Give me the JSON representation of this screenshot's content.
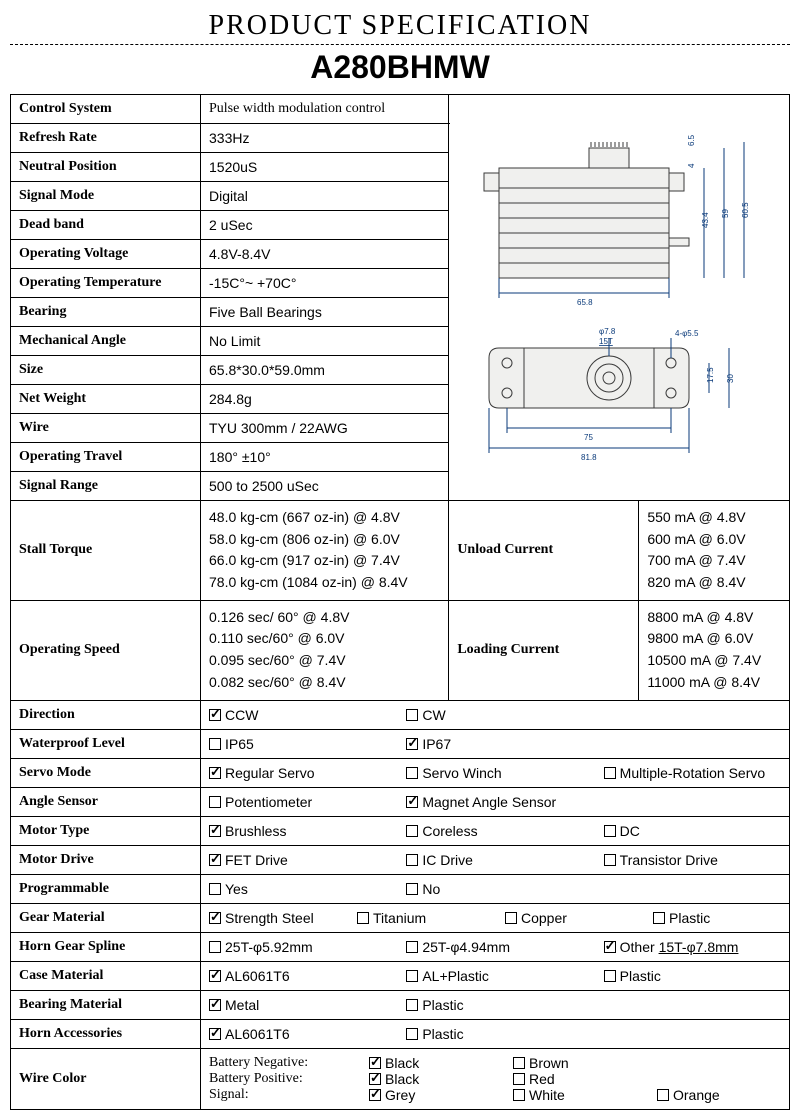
{
  "header": {
    "title": "PRODUCT SPECIFICATION",
    "model": "A280BHMW"
  },
  "rows": {
    "control_system": {
      "label": "Control System",
      "value": "Pulse width modulation control"
    },
    "refresh_rate": {
      "label": "Refresh Rate",
      "value": "333Hz"
    },
    "neutral_pos": {
      "label": "Neutral Position",
      "value": "1520uS"
    },
    "signal_mode": {
      "label": "Signal Mode",
      "value": "Digital"
    },
    "dead_band": {
      "label": "Dead band",
      "value": "2 uSec"
    },
    "op_voltage": {
      "label": "Operating Voltage",
      "value": "4.8V-8.4V"
    },
    "op_temp": {
      "label": "Operating Temperature",
      "value": "-15C°~ +70C°"
    },
    "bearing": {
      "label": "Bearing",
      "value": "Five Ball Bearings"
    },
    "mech_angle": {
      "label": "Mechanical Angle",
      "value": "No Limit"
    },
    "size": {
      "label": "Size",
      "value": "65.8*30.0*59.0mm"
    },
    "net_weight": {
      "label": "Net Weight",
      "value": "284.8g"
    },
    "wire": {
      "label": "Wire",
      "value": "TYU 300mm / 22AWG"
    },
    "op_travel": {
      "label": "Operating Travel",
      "value": "180° ±10°"
    },
    "signal_range": {
      "label": "Signal Range",
      "value": "500 to 2500 uSec"
    }
  },
  "stall_torque": {
    "label": "Stall Torque",
    "lines": [
      "48.0 kg-cm (667 oz-in)   @ 4.8V",
      "58.0 kg-cm (806 oz-in)   @ 6.0V",
      "66.0 kg-cm (917 oz-in)   @ 7.4V",
      "78.0 kg-cm (1084 oz-in)   @ 8.4V"
    ]
  },
  "unload_current": {
    "label": "Unload Current",
    "lines": [
      "550 mA @ 4.8V",
      "600 mA @ 6.0V",
      "700 mA @ 7.4V",
      "820 mA @ 8.4V"
    ]
  },
  "op_speed": {
    "label": "Operating Speed",
    "lines": [
      "0.126 sec/ 60° @ 4.8V",
      "0.110 sec/60° @ 6.0V",
      "0.095 sec/60° @ 7.4V",
      "0.082 sec/60° @ 8.4V"
    ]
  },
  "load_current": {
    "label": "Loading Current",
    "lines": [
      "8800 mA @ 4.8V",
      "9800 mA @ 6.0V",
      "10500 mA @ 7.4V",
      "11000 mA @ 8.4V"
    ]
  },
  "checks": {
    "direction": {
      "label": "Direction",
      "opts": [
        [
          "CCW",
          true
        ],
        [
          "CW",
          false
        ]
      ]
    },
    "waterproof": {
      "label": "Waterproof    Level",
      "opts": [
        [
          "IP65",
          false
        ],
        [
          "IP67",
          true
        ]
      ]
    },
    "servo_mode": {
      "label": "Servo Mode",
      "opts": [
        [
          "Regular Servo",
          true
        ],
        [
          "Servo Winch",
          false
        ],
        [
          "Multiple-Rotation Servo",
          false
        ]
      ]
    },
    "angle_sensor": {
      "label": "Angle Sensor",
      "opts": [
        [
          "Potentiometer",
          false
        ],
        [
          "Magnet Angle Sensor",
          true
        ]
      ]
    },
    "motor_type": {
      "label": "Motor Type",
      "opts": [
        [
          "Brushless",
          true
        ],
        [
          "Coreless",
          false
        ],
        [
          "DC",
          false
        ]
      ]
    },
    "motor_drive": {
      "label": "Motor Drive",
      "opts": [
        [
          "FET Drive",
          true
        ],
        [
          "IC Drive",
          false
        ],
        [
          "Transistor Drive",
          false
        ]
      ]
    },
    "programmable": {
      "label": "Programmable",
      "opts": [
        [
          "  Yes",
          false
        ],
        [
          "  No",
          false
        ]
      ]
    },
    "gear_material": {
      "label": "Gear Material",
      "opts": [
        [
          "Strength Steel",
          true
        ],
        [
          "Titanium",
          false
        ],
        [
          "Copper",
          false
        ],
        [
          "Plastic",
          false
        ]
      ]
    },
    "horn_spline": {
      "label": "Horn Gear Spline",
      "opts": [
        [
          "25T-φ5.92mm",
          false
        ],
        [
          "25T-φ4.94mm",
          false
        ],
        [
          "Other 15T-φ7.8mm",
          true,
          "underline"
        ]
      ]
    },
    "case_material": {
      "label": "Case Material",
      "opts": [
        [
          "AL6061T6",
          true
        ],
        [
          "AL+Plastic",
          false
        ],
        [
          "Plastic",
          false
        ]
      ]
    },
    "bearing_material": {
      "label": "Bearing Material",
      "opts": [
        [
          "Metal",
          true
        ],
        [
          "Plastic",
          false
        ]
      ]
    },
    "horn_acc": {
      "label": "Horn Accessories",
      "opts": [
        [
          "AL6061T6",
          true
        ],
        [
          "Plastic",
          false
        ]
      ]
    }
  },
  "wire_color": {
    "label": "Wire Color",
    "rows": [
      {
        "name": "Battery Negative:",
        "opts": [
          [
            "Black",
            true
          ],
          [
            "Brown",
            false
          ]
        ]
      },
      {
        "name": "Battery Positive:",
        "opts": [
          [
            "Black",
            true
          ],
          [
            " Red",
            false
          ]
        ]
      },
      {
        "name": "Signal:",
        "opts": [
          [
            "Grey",
            true
          ],
          [
            "White",
            false
          ],
          [
            "Orange",
            false
          ]
        ]
      }
    ]
  },
  "diagram": {
    "top": {
      "width": "65.8",
      "height_body": "43.4",
      "height_total": "59",
      "gear_h": "6.5",
      "plate": "4",
      "overall": "60.5"
    },
    "bottom": {
      "hole": "φ7.8",
      "spline": "15T",
      "screw": "4-φ5.5",
      "pitch": "17.5",
      "depth": "30",
      "span": "75",
      "overall": "81.8"
    }
  }
}
